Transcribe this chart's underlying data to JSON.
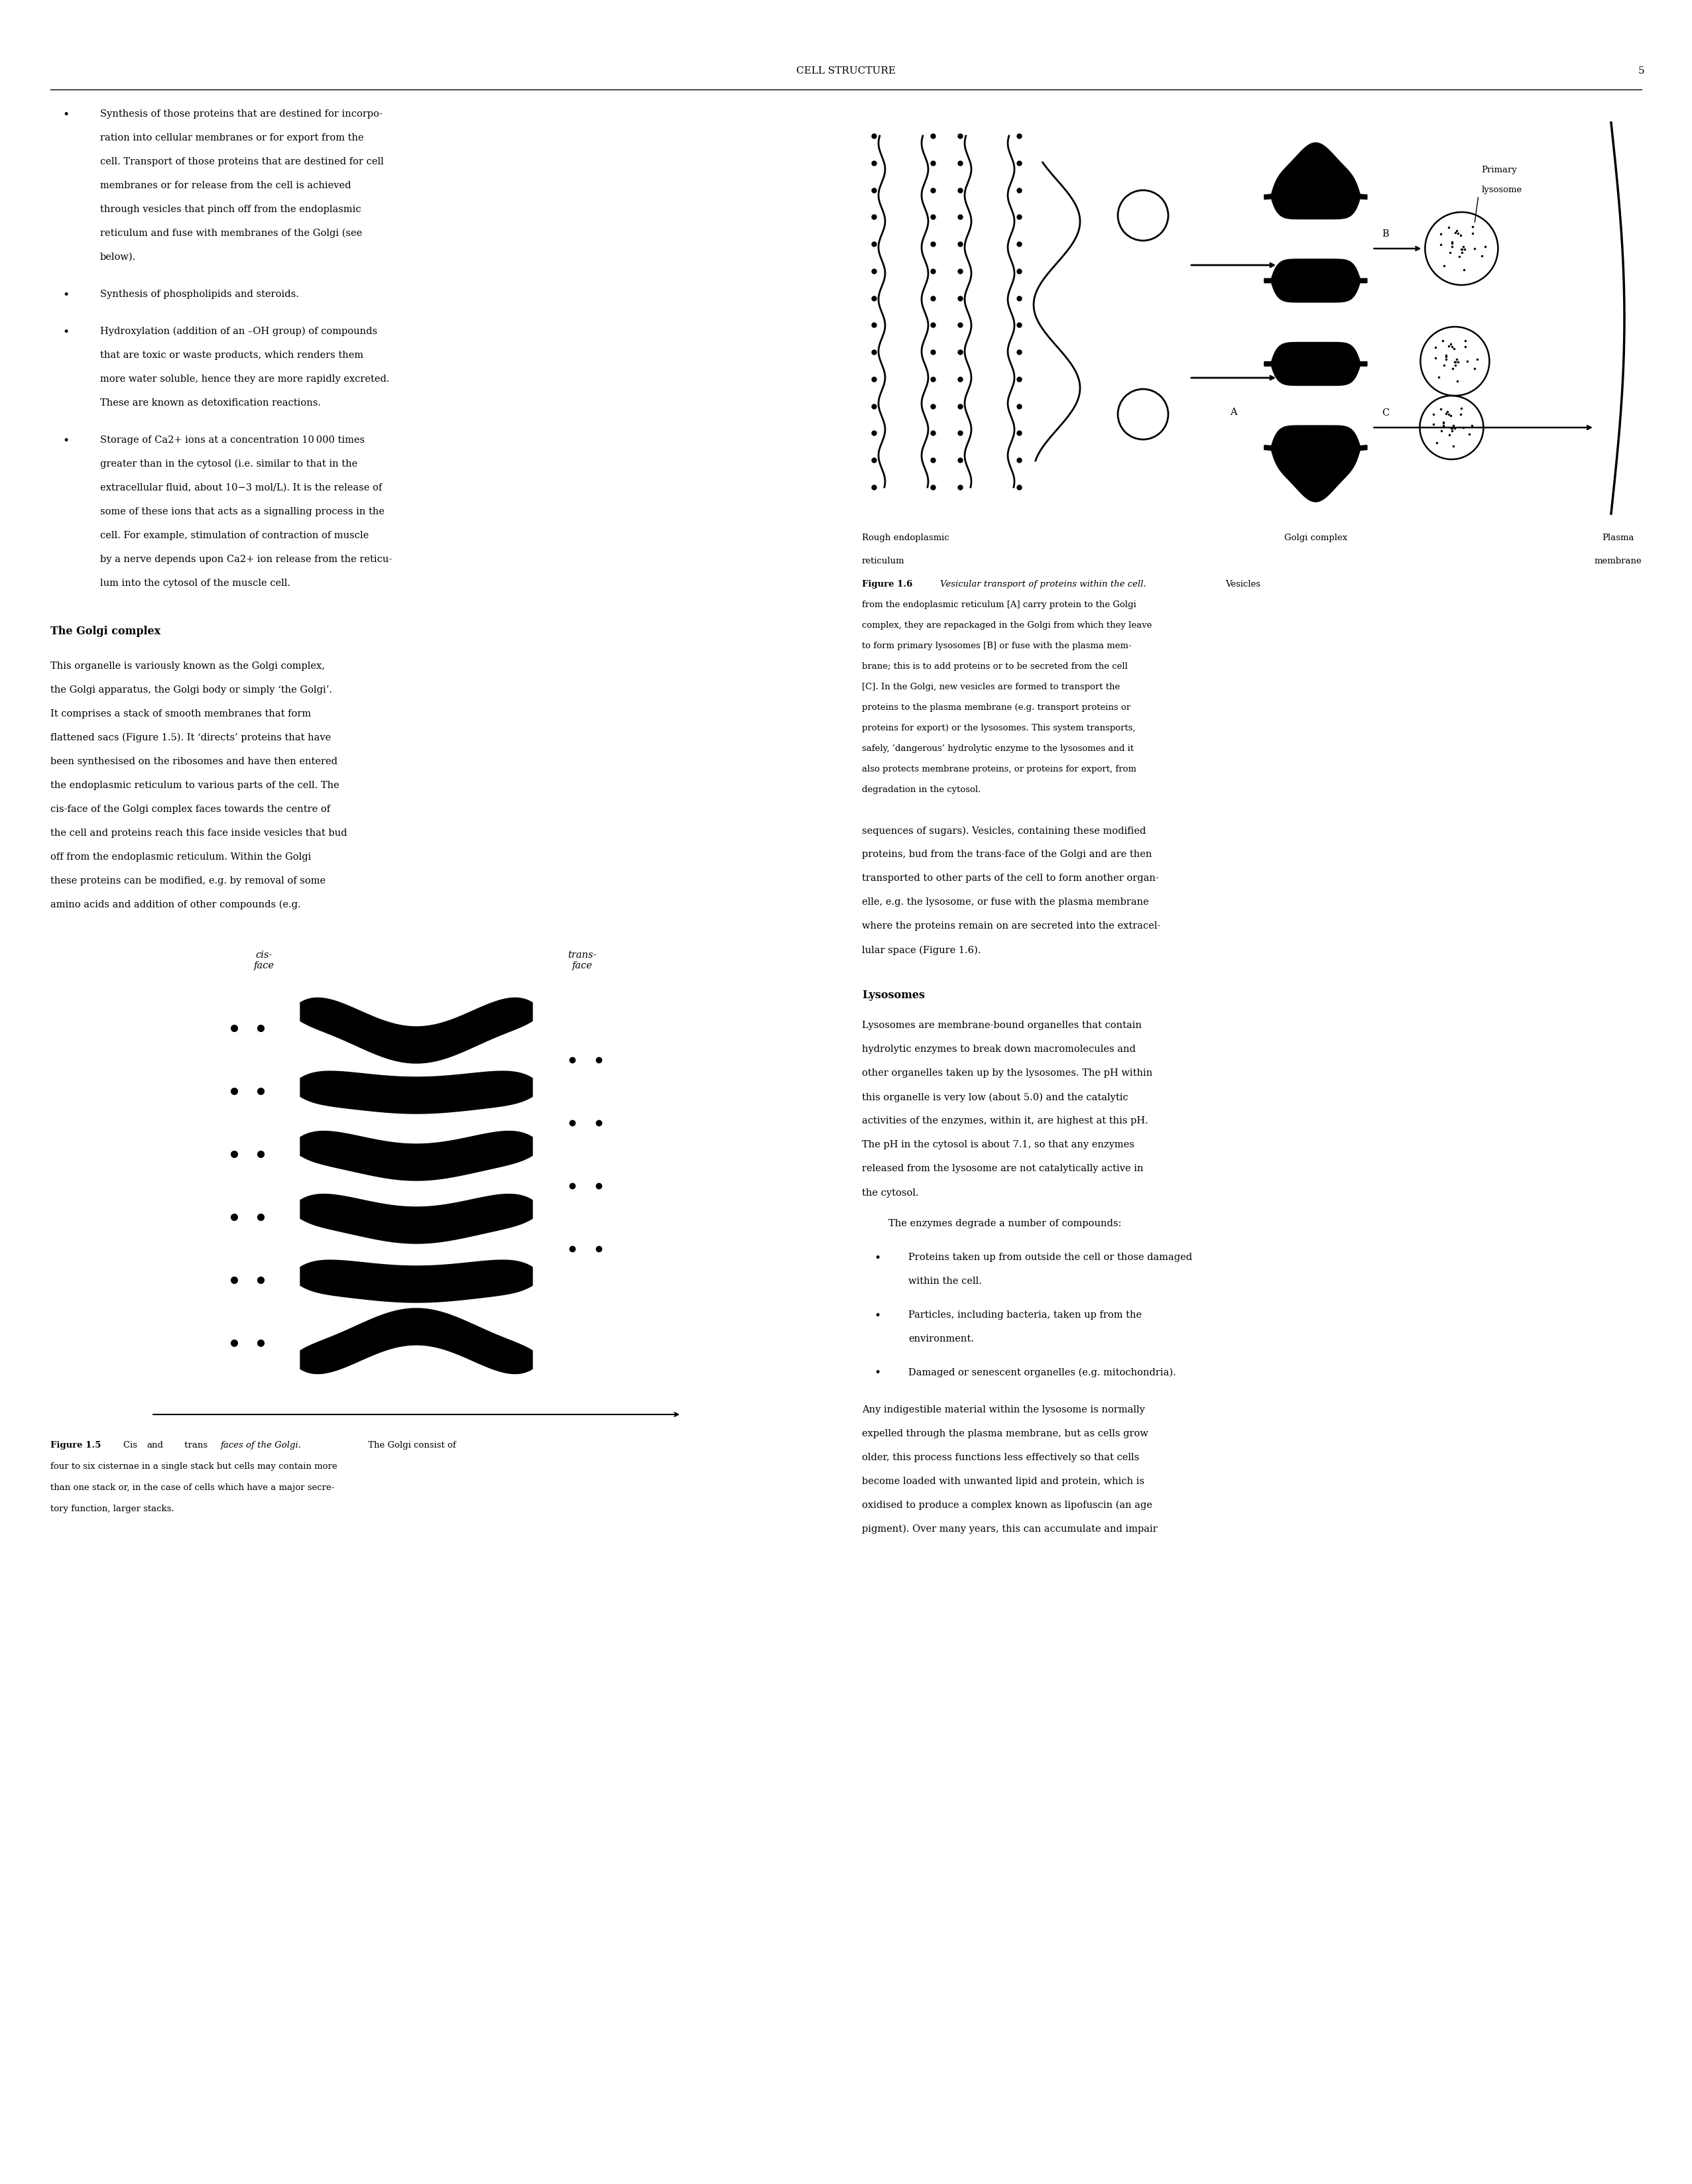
{
  "page_title": "CELL STRUCTURE",
  "page_number": "5",
  "background_color": "#ffffff",
  "body_fontsize": 10.5,
  "header_fontsize": 11.5,
  "title_fontsize": 11,
  "caption_fontsize": 9.5,
  "bullet_texts": [
    "Synthesis of those proteins that are destined for incorpo-\nration into cellular membranes or for export from the\ncell. Transport of those proteins that are destined for cell\nmembranes or for release from the cell is achieved\nthrough vesicles that pinch off from the endoplasmic\nreticulum and fuse with membranes of the Golgi (see\nbelow).",
    "Synthesis of phospholipids and steroids.",
    "Hydroxylation (addition of an –OH group) of compounds\nthat are toxic or waste products, which renders them\nmore water soluble, hence they are more rapidly excreted.\nThese are known as detoxification reactions.",
    "Storage of Ca2+ ions at a concentration 10 000 times\ngreater than in the cytosol (i.e. similar to that in the\nextracellular fluid, about 10−3 mol/L). It is the release of\nsome of these ions that acts as a signalling process in the\ncell. For example, stimulation of contraction of muscle\nby a nerve depends upon Ca2+ ion release from the reticu-\nlum into the cytosol of the muscle cell."
  ],
  "golgi_section_header": "The Golgi complex",
  "golgi_section_text": "This organelle is variously known as the Golgi complex,\nthe Golgi apparatus, the Golgi body or simply ‘the Golgi’.\nIt comprises a stack of smooth membranes that form\nflattened sacs (Figure 1.5). It ‘directs’ proteins that have\nbeen synthesised on the ribosomes and have then entered\nthe endoplasmic reticulum to various parts of the cell. The\ncis-face of the Golgi complex faces towards the centre of\nthe cell and proteins reach this face inside vesicles that bud\noff from the endoplasmic reticulum. Within the Golgi\nthese proteins can be modified, e.g. by removal of some\namino acids and addition of other compounds (e.g.",
  "fig15_caption": "Figure 1.5  Cis and trans faces of the Golgi. The Golgi consist of\nfour to six cisternae in a single stack but cells may contain more\nthan one stack or, in the case of cells which have a major secre-\ntory function, larger stacks.",
  "right_col_text1": "sequences of sugars). Vesicles, containing these modified\nproteins, bud from the trans-face of the Golgi and are then\ntransported to other parts of the cell to form another organ-\nelle, e.g. the lysosome, or fuse with the plasma membrane\nwhere the proteins remain on are secreted into the extracel-\nlular space (Figure 1.6).",
  "fig16_caption": "Figure 1.6  Vesicular transport of proteins within the cell. Vesicles\nfrom the endoplasmic reticulum [A] carry protein to the Golgi\ncomplex, they are repackaged in the Golgi from which they leave\nto form primary lysosomes [B] or fuse with the plasma mem-\nbrane; this is to add proteins or to be secreted from the cell\n[C]. In the Golgi, new vesicles are formed to transport the\nproteins to the plasma membrane (e.g. transport proteins or\nproteins for export) or the lysosomes. This system transports,\nsafely, ‘dangerous’ hydrolytic enzyme to the lysosomes and it\nalso protects membrane proteins, or proteins for export, from\ndegradation in the cytosol.",
  "lysosomes_header": "Lysosomes",
  "lysosomes_text": "Lysosomes are membrane-bound organelles that contain\nhydrolytic enzymes to break down macromolecules and\nother organelles taken up by the lysosomes. The pH within\nthis organelle is very low (about 5.0) and the catalytic\nactivities of the enzymes, within it, are highest at this pH.\nThe pH in the cytosol is about 7.1, so that any enzymes\nreleased from the lysosome are not catalytically active in\nthe cytosol.",
  "lysosomes_indent": "    The enzymes degrade a number of compounds:",
  "lysosomes_bullets": [
    "Proteins taken up from outside the cell or those damaged\nwithin the cell.",
    "Particles, including bacteria, taken up from the\nenvironment.",
    "Damaged or senescent organelles (e.g. mitochondria)."
  ],
  "lysosomes_text2": "Any indigestible material within the lysosome is normally\nexpelled through the plasma membrane, but as cells grow\nolder, this process functions less effectively so that cells\nbecome loaded with unwanted lipid and protein, which is\noxidised to produce a complex known as lipofuscin (an age\npigment). Over many years, this can accumulate and impair"
}
